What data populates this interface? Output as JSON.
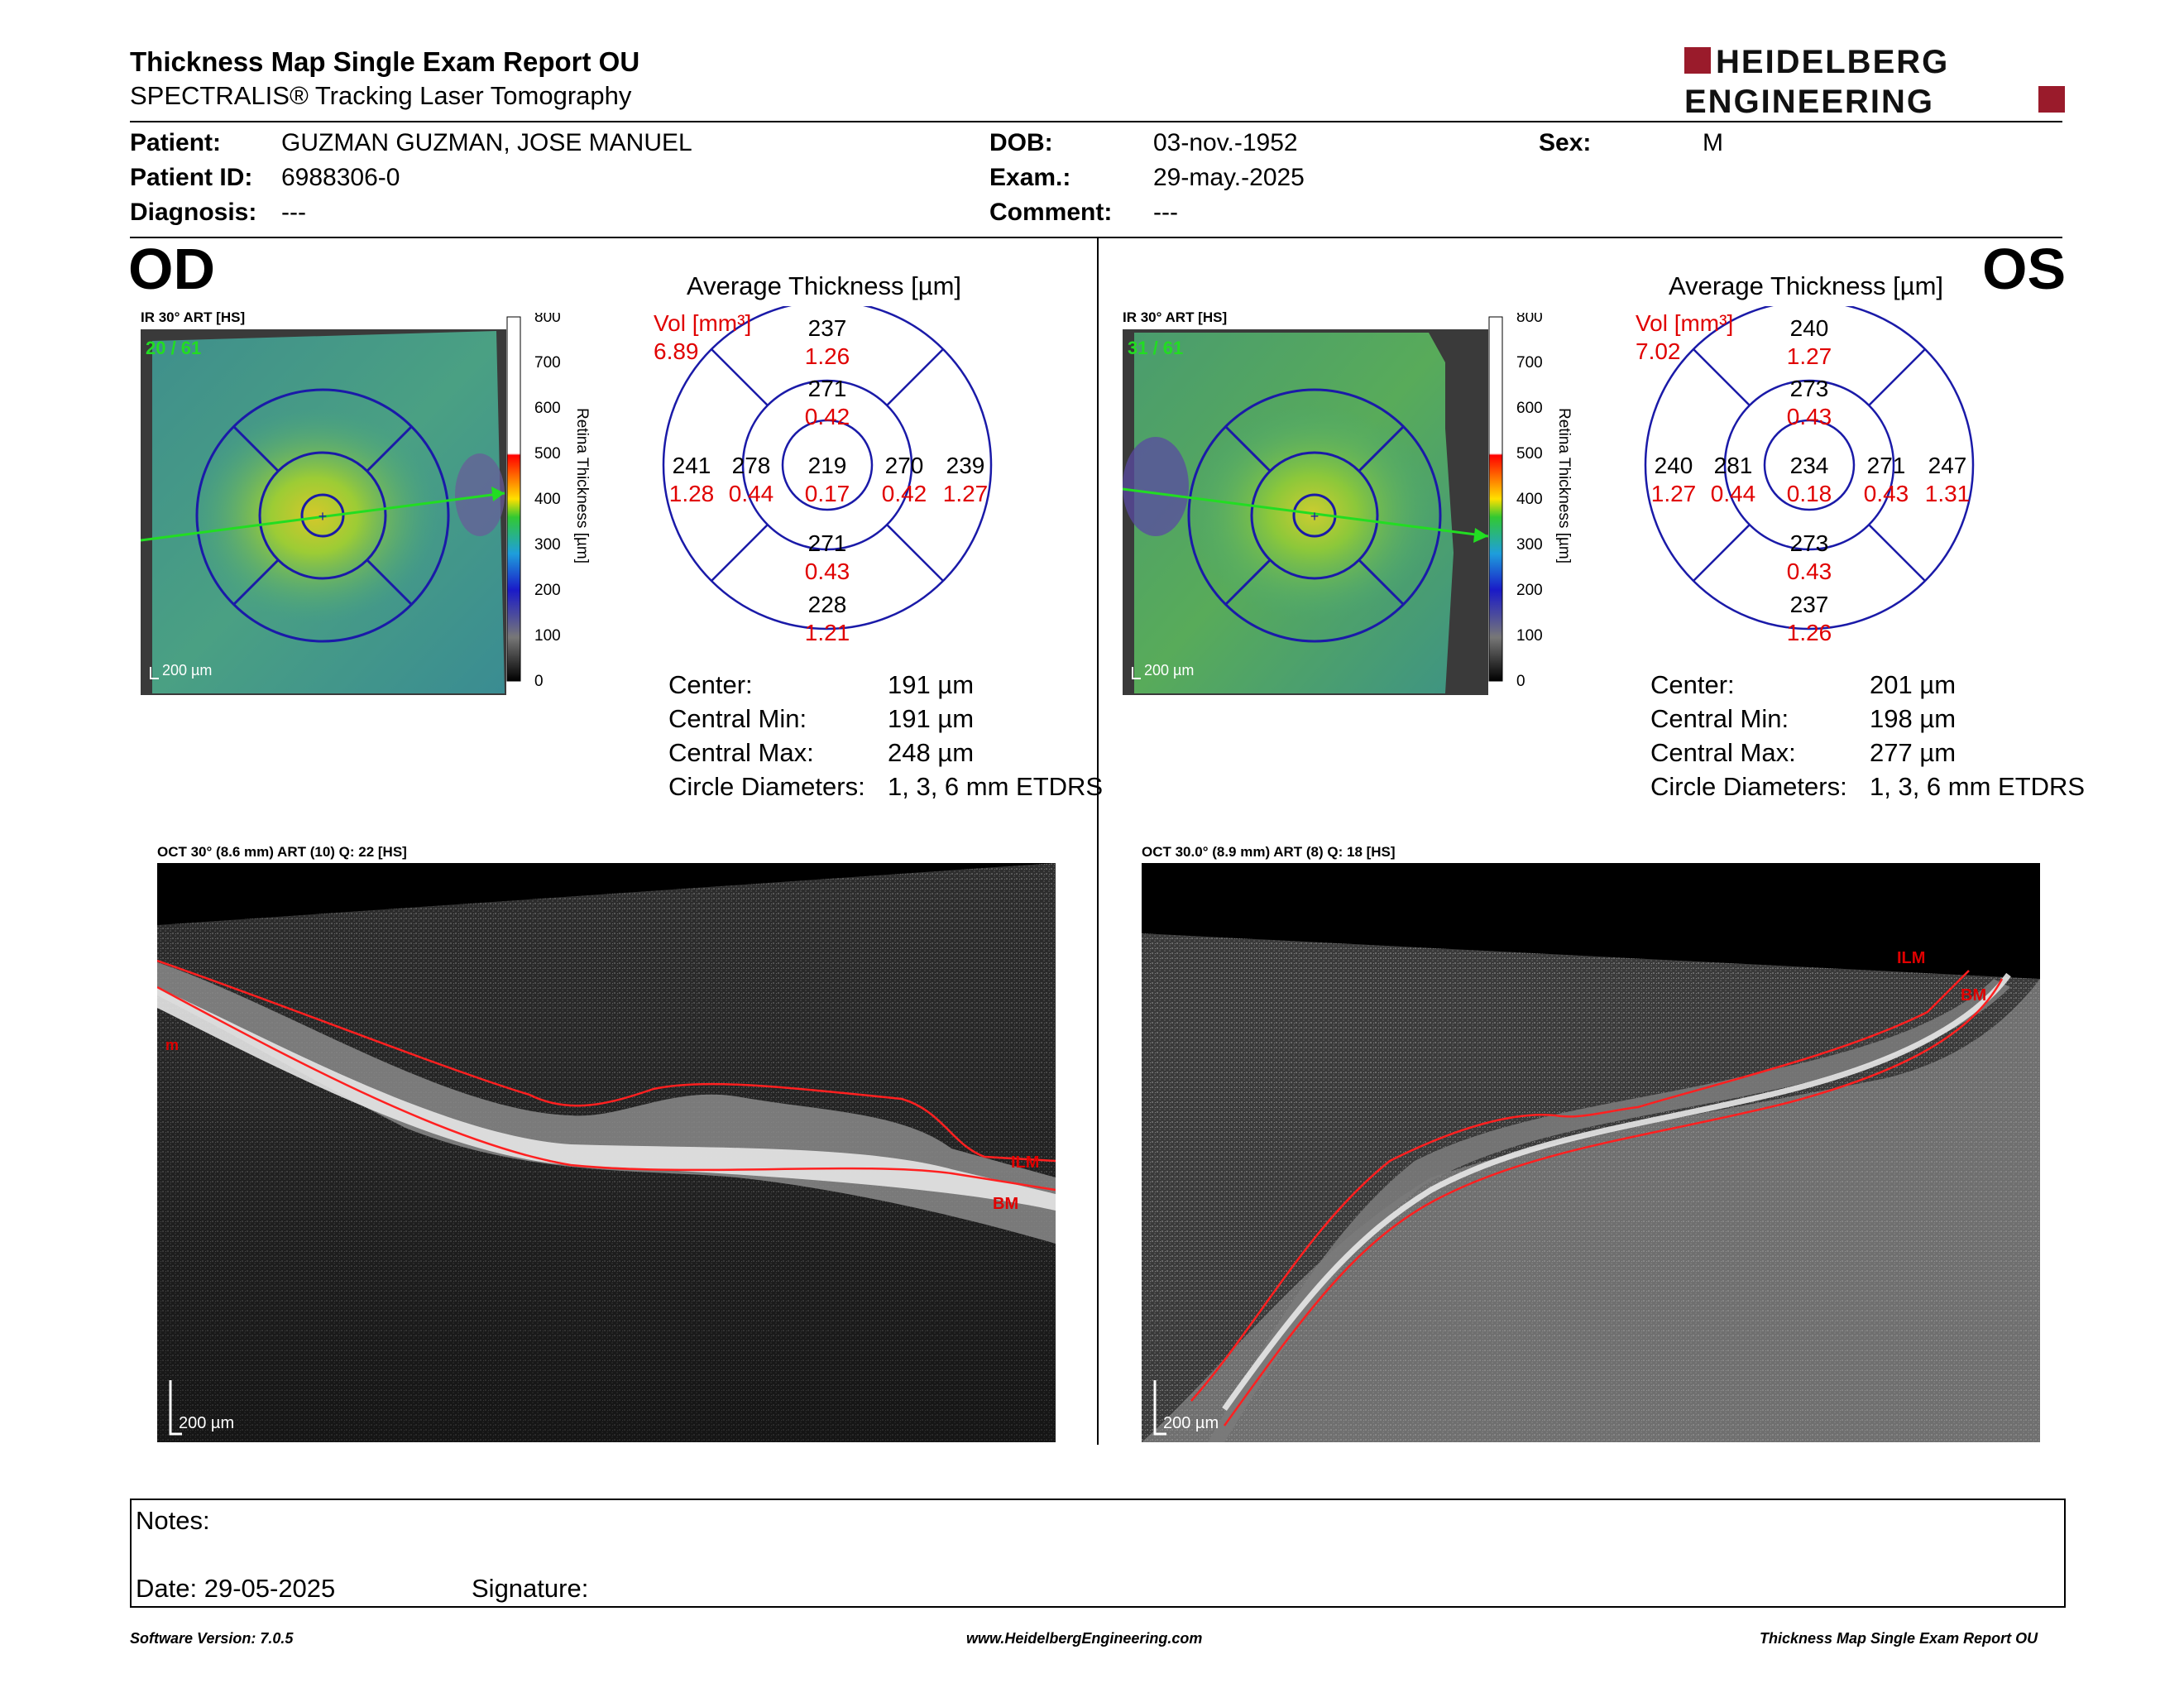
{
  "header": {
    "title": "Thickness Map Single Exam Report OU",
    "subtitle": "SPECTRALIS® Tracking Laser Tomography",
    "logo_line1": "HEIDELBERG",
    "logo_line2": "ENGINEERING"
  },
  "patient": {
    "patient_label": "Patient:",
    "patient_name": "GUZMAN GUZMAN, JOSE MANUEL",
    "id_label": "Patient ID:",
    "id": "6988306-0",
    "diagnosis_label": "Diagnosis:",
    "diagnosis": "---",
    "dob_label": "DOB:",
    "dob": "03-nov.-1952",
    "exam_label": "Exam.:",
    "exam": "29-may.-2025",
    "comment_label": "Comment:",
    "comment": "---",
    "sex_label": "Sex:",
    "sex": "M"
  },
  "od": {
    "eye": "OD",
    "ir_label": "IR 30° ART [HS]",
    "frames": "20 / 61",
    "scale": "200 µm",
    "colorbar_ticks": [
      "800",
      "700",
      "600",
      "500",
      "400",
      "300",
      "200",
      "100",
      "0"
    ],
    "colorbar_title": "Retina Thickness [µm]",
    "avg_title": "Average Thickness [µm]",
    "vol_label": "Vol [mm³]",
    "vol_total": "6.89",
    "grid": {
      "superior_outer": {
        "t": "237",
        "v": "1.26"
      },
      "superior_inner": {
        "t": "271",
        "v": "0.42"
      },
      "temporal_outer": {
        "t": "241",
        "v": "1.28"
      },
      "temporal_inner": {
        "t": "278",
        "v": "0.44"
      },
      "center": {
        "t": "219",
        "v": "0.17"
      },
      "nasal_inner": {
        "t": "270",
        "v": "0.42"
      },
      "nasal_outer": {
        "t": "239",
        "v": "1.27"
      },
      "inferior_inner": {
        "t": "271",
        "v": "0.43"
      },
      "inferior_outer": {
        "t": "228",
        "v": "1.21"
      }
    },
    "stats": [
      {
        "label": "Center:",
        "value": "191 µm"
      },
      {
        "label": "Central Min:",
        "value": "191 µm"
      },
      {
        "label": "Central Max:",
        "value": "248 µm"
      },
      {
        "label": "Circle Diameters:",
        "value": "1, 3, 6 mm ETDRS"
      }
    ],
    "oct_label": "OCT 30° (8.6 mm) ART (10) Q: 22 [HS]",
    "oct_scale": "200 µm",
    "ilm": "ILM",
    "bm": "BM",
    "left_mark": "m"
  },
  "os": {
    "eye": "OS",
    "ir_label": "IR 30° ART [HS]",
    "frames": "31 / 61",
    "scale": "200 µm",
    "colorbar_ticks": [
      "800",
      "700",
      "600",
      "500",
      "400",
      "300",
      "200",
      "100",
      "0"
    ],
    "colorbar_title": "Retina Thickness [µm]",
    "avg_title": "Average Thickness [µm]",
    "vol_label": "Vol [mm³]",
    "vol_total": "7.02",
    "grid": {
      "superior_outer": {
        "t": "240",
        "v": "1.27"
      },
      "superior_inner": {
        "t": "273",
        "v": "0.43"
      },
      "temporal_outer": {
        "t": "240",
        "v": "1.27"
      },
      "temporal_inner": {
        "t": "281",
        "v": "0.44"
      },
      "center": {
        "t": "234",
        "v": "0.18"
      },
      "nasal_inner": {
        "t": "271",
        "v": "0.43"
      },
      "nasal_outer": {
        "t": "247",
        "v": "1.31"
      },
      "inferior_inner": {
        "t": "273",
        "v": "0.43"
      },
      "inferior_outer": {
        "t": "237",
        "v": "1.26"
      }
    },
    "stats": [
      {
        "label": "Center:",
        "value": "201 µm"
      },
      {
        "label": "Central Min:",
        "value": "198 µm"
      },
      {
        "label": "Central Max:",
        "value": "277 µm"
      },
      {
        "label": "Circle Diameters:",
        "value": "1, 3, 6 mm ETDRS"
      }
    ],
    "oct_label": "OCT 30.0° (8.9 mm) ART (8) Q: 18 [HS]",
    "oct_scale": "200 µm",
    "ilm": "ILM",
    "bm": "BM"
  },
  "notes": {
    "notes_label": "Notes:",
    "date_label": "Date: 29-05-2025",
    "signature_label": "Signature:"
  },
  "footer": {
    "version": "Software Version: 7.0.5",
    "url": "www.HeidelbergEngineering.com",
    "report": "Thickness Map Single Exam Report OU"
  },
  "colors": {
    "accent_red": "#e00000",
    "grid_blue": "#1a1aa8",
    "logo_red": "#9a1b2b",
    "frame_green": "#22dd22"
  }
}
